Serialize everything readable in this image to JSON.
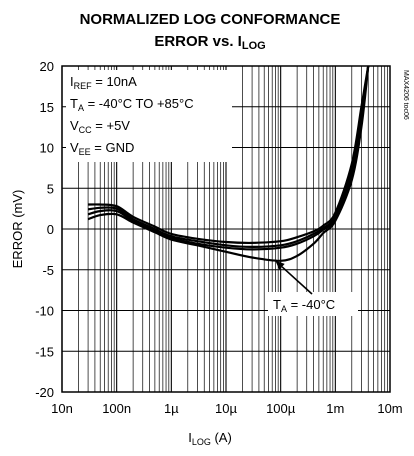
{
  "chart_data": {
    "type": "line",
    "title_line1": "NORMALIZED LOG CONFORMANCE",
    "title_line2_main": "ERROR vs. I",
    "title_line2_sub": "LOG",
    "xlabel_main": "I",
    "xlabel_sub": "LOG",
    "xlabel_suffix": " (A)",
    "ylabel": "ERROR (mV)",
    "x_scale": "log",
    "xlim": [
      1e-08,
      0.01
    ],
    "ylim": [
      -20,
      20
    ],
    "grid": true,
    "x_ticks": [
      1e-08,
      1e-07,
      1e-06,
      1e-05,
      0.0001,
      0.001,
      0.01
    ],
    "x_tick_labels": [
      "10n",
      "100n",
      "1µ",
      "10µ",
      "100µ",
      "1m",
      "10m"
    ],
    "y_ticks": [
      20,
      15,
      10,
      5,
      0,
      -5,
      -10,
      -15,
      -20
    ],
    "y_tick_labels": [
      "20",
      "15",
      "10",
      "5",
      "0",
      "-5",
      "-10",
      "-15",
      "-20"
    ],
    "conditions": [
      {
        "main": "I",
        "sub": "REF",
        "rest": " = 10nA"
      },
      {
        "main": "T",
        "sub": "A",
        "rest": " = -40°C TO +85°C"
      },
      {
        "main": "V",
        "sub": "CC",
        "rest": " = +5V"
      },
      {
        "main": "V",
        "sub": "EE",
        "rest": " = GND"
      }
    ],
    "annotation": {
      "main": "T",
      "sub": "A",
      "rest": " = -40°C",
      "points_to_x": 8e-05,
      "points_to_y": -3.9
    },
    "part_code": "MAX4206 toc06",
    "series": [
      {
        "x": [
          3e-08,
          5e-08,
          1e-07,
          2e-07,
          5e-07,
          1e-06,
          3e-06,
          1e-05,
          3e-05,
          0.0001,
          0.0002,
          0.0004,
          0.0006,
          0.001,
          0.002,
          0.003,
          0.004
        ],
        "y": [
          3.0,
          3.0,
          2.8,
          1.5,
          0.3,
          -0.6,
          -1.2,
          -1.6,
          -1.7,
          -1.5,
          -1.0,
          -0.3,
          0.4,
          2.0,
          8.0,
          15.0,
          20.0
        ]
      },
      {
        "x": [
          3e-08,
          5e-08,
          1e-07,
          2e-07,
          5e-07,
          1e-06,
          3e-06,
          1e-05,
          3e-05,
          0.0001,
          0.0002,
          0.0004,
          0.0006,
          0.001,
          0.002,
          0.003,
          0.004
        ],
        "y": [
          2.4,
          2.6,
          2.5,
          1.2,
          0.0,
          -0.9,
          -1.5,
          -2.0,
          -2.2,
          -2.0,
          -1.5,
          -0.6,
          0.1,
          1.6,
          7.2,
          14.0,
          20.0
        ]
      },
      {
        "x": [
          3e-08,
          5e-08,
          1e-07,
          2e-07,
          5e-07,
          1e-06,
          3e-06,
          1e-05,
          3e-05,
          0.0001,
          0.0002,
          0.0004,
          0.0006,
          0.001,
          0.002,
          0.003,
          0.004
        ],
        "y": [
          1.8,
          2.2,
          2.2,
          1.0,
          -0.2,
          -1.1,
          -1.8,
          -2.3,
          -2.5,
          -2.3,
          -1.8,
          -0.9,
          -0.1,
          1.3,
          6.8,
          13.5,
          20.0
        ]
      },
      {
        "x": [
          3e-08,
          5e-08,
          1e-07,
          2e-07,
          5e-07,
          1e-06,
          3e-06,
          1e-05,
          3e-05,
          0.0001,
          0.0002,
          0.0004,
          0.0006,
          0.001,
          0.002,
          0.003,
          0.004
        ],
        "y": [
          1.2,
          1.7,
          1.8,
          0.8,
          -0.4,
          -1.3,
          -2.0,
          -2.8,
          -3.5,
          -3.9,
          -3.3,
          -1.8,
          -0.5,
          1.0,
          6.0,
          12.5,
          20.0
        ]
      }
    ]
  }
}
